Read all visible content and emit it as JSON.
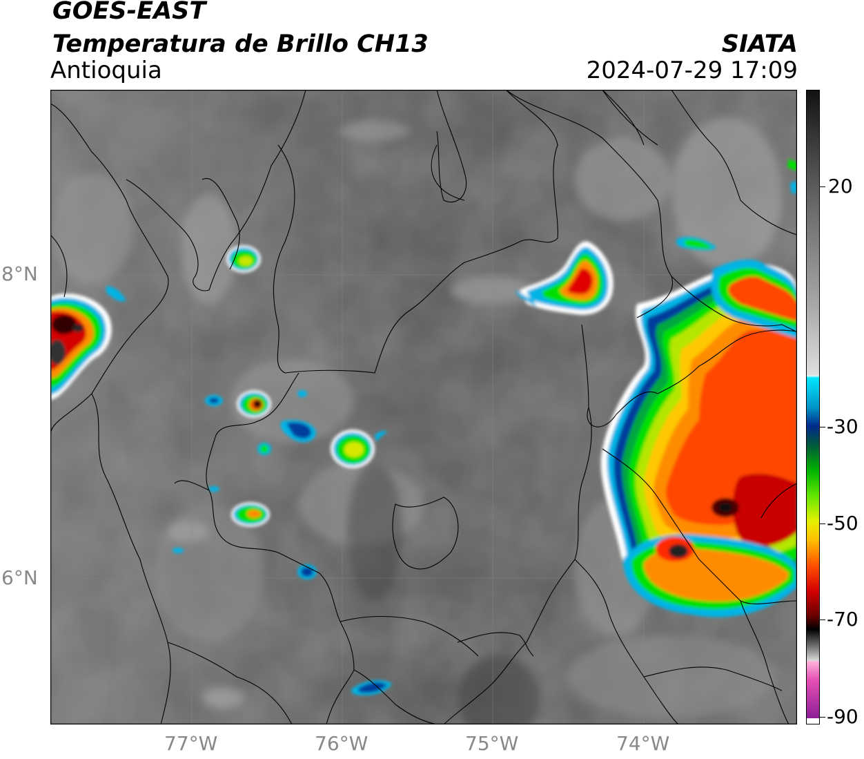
{
  "title": {
    "satellite": "GOES-EAST",
    "product": "Temperatura de Brillo CH13",
    "region": "Antioquia",
    "organization": "SIATA",
    "datetime": "2024-07-29 17:09"
  },
  "axes": {
    "lat_labels": [
      "8°N",
      "6°N"
    ],
    "lon_labels": [
      "77°W",
      "76°W",
      "75°W",
      "74°W"
    ]
  },
  "colorbar": {
    "tick_labels": [
      "20",
      "-30",
      "-50",
      "-70",
      "-90"
    ]
  },
  "colors": {
    "background_gray": "#6a6a6a",
    "border_line": "#000000",
    "cold_red": "#d40000",
    "warm_green": "#00c800"
  }
}
